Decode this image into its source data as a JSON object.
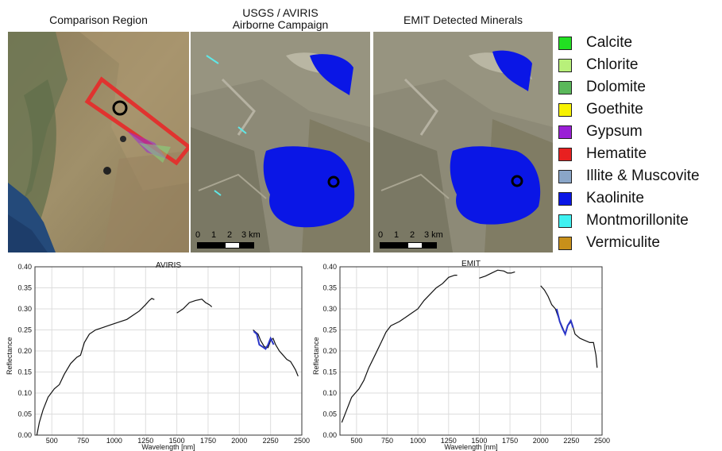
{
  "panels": {
    "region_title": "Comparison Region",
    "aviris_title_line1": "USGS / AVIRIS",
    "aviris_title_line2": "Airborne Campaign",
    "emit_title": "EMIT Detected Minerals"
  },
  "scale_bar": {
    "labels": [
      "0",
      "1",
      "2",
      "3 km"
    ]
  },
  "legend": {
    "items": [
      {
        "label": "Calcite",
        "color": "#22e022"
      },
      {
        "label": "Chlorite",
        "color": "#b8f07a"
      },
      {
        "label": "Dolomite",
        "color": "#5ab85a"
      },
      {
        "label": "Goethite",
        "color": "#f7f200"
      },
      {
        "label": "Gypsum",
        "color": "#9a1fd6"
      },
      {
        "label": "Hematite",
        "color": "#e82020"
      },
      {
        "label": "Illite & Muscovite",
        "color": "#8aa6c8"
      },
      {
        "label": "Kaolinite",
        "color": "#0a16e6"
      },
      {
        "label": "Montmorillonite",
        "color": "#3ff2f2"
      },
      {
        "label": "Vermiculite",
        "color": "#c8901a"
      }
    ]
  },
  "chart_data": [
    {
      "type": "line",
      "title": "AVIRIS",
      "xlabel": "Wavelength [nm]",
      "ylabel": "Reflectance",
      "xlim": [
        365,
        2500
      ],
      "ylim": [
        0,
        0.4
      ],
      "xticks": [
        500,
        750,
        1000,
        1250,
        1500,
        1750,
        2000,
        2250,
        2500
      ],
      "yticks": [
        0.0,
        0.05,
        0.1,
        0.15,
        0.2,
        0.25,
        0.3,
        0.35,
        0.4
      ],
      "grid": true,
      "segments": [
        {
          "color": "#111111",
          "points": [
            [
              380,
              0.0
            ],
            [
              400,
              0.03
            ],
            [
              430,
              0.06
            ],
            [
              470,
              0.09
            ],
            [
              520,
              0.11
            ],
            [
              560,
              0.12
            ],
            [
              600,
              0.145
            ],
            [
              650,
              0.17
            ],
            [
              700,
              0.185
            ],
            [
              730,
              0.19
            ],
            [
              760,
              0.22
            ],
            [
              800,
              0.24
            ],
            [
              850,
              0.25
            ],
            [
              900,
              0.255
            ],
            [
              950,
              0.26
            ],
            [
              1000,
              0.265
            ],
            [
              1050,
              0.27
            ],
            [
              1100,
              0.275
            ],
            [
              1150,
              0.285
            ],
            [
              1200,
              0.295
            ],
            [
              1250,
              0.31
            ],
            [
              1280,
              0.32
            ],
            [
              1300,
              0.325
            ],
            [
              1320,
              0.322
            ]
          ]
        },
        {
          "color": "#111111",
          "points": [
            [
              1500,
              0.29
            ],
            [
              1550,
              0.3
            ],
            [
              1600,
              0.315
            ],
            [
              1650,
              0.32
            ],
            [
              1700,
              0.323
            ],
            [
              1730,
              0.315
            ],
            [
              1760,
              0.31
            ],
            [
              1780,
              0.305
            ]
          ]
        },
        {
          "color": "#111111",
          "points": [
            [
              2110,
              0.25
            ],
            [
              2130,
              0.245
            ],
            [
              2150,
              0.24
            ],
            [
              2170,
              0.225
            ],
            [
              2200,
              0.21
            ],
            [
              2230,
              0.208
            ],
            [
              2250,
              0.225
            ],
            [
              2270,
              0.23
            ],
            [
              2290,
              0.215
            ],
            [
              2320,
              0.2
            ],
            [
              2350,
              0.19
            ],
            [
              2380,
              0.18
            ],
            [
              2410,
              0.175
            ],
            [
              2430,
              0.165
            ],
            [
              2450,
              0.155
            ],
            [
              2470,
              0.14
            ]
          ]
        },
        {
          "color": "#2a35c8",
          "points": [
            [
              2115,
              0.247
            ],
            [
              2140,
              0.24
            ],
            [
              2160,
              0.215
            ],
            [
              2185,
              0.21
            ],
            [
              2210,
              0.205
            ],
            [
              2230,
              0.215
            ],
            [
              2250,
              0.23
            ],
            [
              2275,
              0.215
            ]
          ]
        }
      ]
    },
    {
      "type": "line",
      "title": "EMIT",
      "xlabel": "Wavelength [nm]",
      "ylabel": "Reflectance",
      "xlim": [
        365,
        2500
      ],
      "ylim": [
        0,
        0.4
      ],
      "xticks": [
        500,
        750,
        1000,
        1250,
        1500,
        1750,
        2000,
        2250,
        2500
      ],
      "yticks": [
        0.0,
        0.05,
        0.1,
        0.15,
        0.2,
        0.25,
        0.3,
        0.35,
        0.4
      ],
      "grid": true,
      "segments": [
        {
          "color": "#111111",
          "points": [
            [
              380,
              0.03
            ],
            [
              420,
              0.06
            ],
            [
              460,
              0.09
            ],
            [
              520,
              0.11
            ],
            [
              560,
              0.13
            ],
            [
              600,
              0.16
            ],
            [
              650,
              0.19
            ],
            [
              700,
              0.22
            ],
            [
              740,
              0.245
            ],
            [
              780,
              0.26
            ],
            [
              850,
              0.27
            ],
            [
              900,
              0.28
            ],
            [
              950,
              0.29
            ],
            [
              1000,
              0.3
            ],
            [
              1050,
              0.32
            ],
            [
              1100,
              0.335
            ],
            [
              1150,
              0.35
            ],
            [
              1200,
              0.36
            ],
            [
              1250,
              0.375
            ],
            [
              1300,
              0.38
            ],
            [
              1320,
              0.38
            ]
          ]
        },
        {
          "color": "#111111",
          "points": [
            [
              1500,
              0.373
            ],
            [
              1550,
              0.378
            ],
            [
              1600,
              0.385
            ],
            [
              1650,
              0.392
            ],
            [
              1700,
              0.39
            ],
            [
              1730,
              0.385
            ],
            [
              1760,
              0.385
            ],
            [
              1790,
              0.388
            ]
          ]
        },
        {
          "color": "#111111",
          "points": [
            [
              2000,
              0.355
            ],
            [
              2030,
              0.345
            ],
            [
              2060,
              0.33
            ],
            [
              2090,
              0.31
            ],
            [
              2120,
              0.3
            ],
            [
              2150,
              0.275
            ],
            [
              2180,
              0.255
            ],
            [
              2200,
              0.24
            ],
            [
              2220,
              0.26
            ],
            [
              2250,
              0.27
            ],
            [
              2280,
              0.24
            ],
            [
              2320,
              0.23
            ],
            [
              2360,
              0.225
            ],
            [
              2400,
              0.22
            ],
            [
              2430,
              0.22
            ],
            [
              2450,
              0.19
            ],
            [
              2460,
              0.16
            ]
          ]
        },
        {
          "color": "#2a35c8",
          "points": [
            [
              2130,
              0.3
            ],
            [
              2155,
              0.27
            ],
            [
              2175,
              0.255
            ],
            [
              2200,
              0.24
            ],
            [
              2220,
              0.26
            ],
            [
              2245,
              0.272
            ],
            [
              2265,
              0.255
            ]
          ]
        }
      ]
    }
  ]
}
